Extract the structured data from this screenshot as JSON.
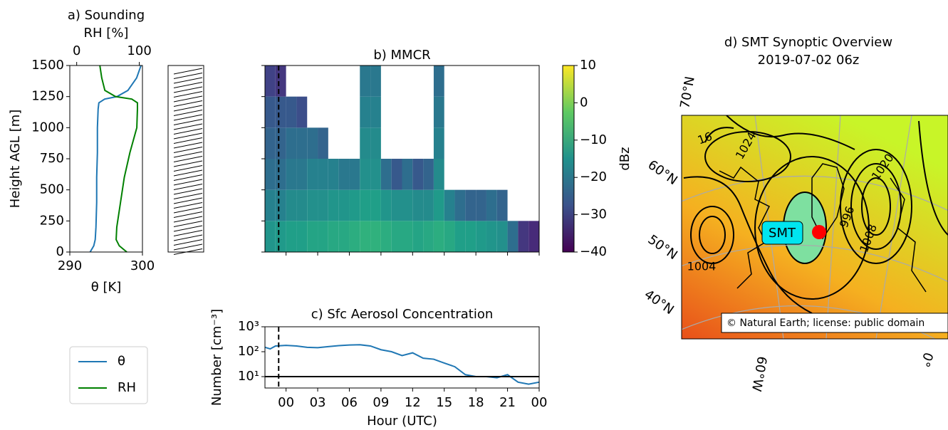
{
  "chart_data": [
    {
      "type": "profile",
      "title": "a) Sounding",
      "xlabel": "θ [K]",
      "x2label": "RH [%]",
      "ylabel": "Height AGL [m]",
      "y": [
        0,
        50,
        100,
        200,
        400,
        600,
        800,
        1000,
        1150,
        1200,
        1230,
        1250,
        1300,
        1400,
        1500
      ],
      "series": [
        {
          "name": "θ",
          "color": "#1f77b4",
          "axis": "x",
          "values": [
            292.8,
            293.3,
            293.5,
            293.6,
            293.7,
            293.7,
            293.8,
            293.8,
            293.9,
            294.0,
            294.8,
            296.5,
            298.0,
            299.2,
            299.8
          ]
        },
        {
          "name": "RH",
          "color": "#008000",
          "axis": "x2",
          "values": [
            80,
            68,
            63,
            64,
            70,
            76,
            85,
            96,
            97,
            97,
            88,
            62,
            45,
            40,
            37
          ]
        }
      ],
      "xlim": [
        290,
        300
      ],
      "xticks": [
        290,
        300
      ],
      "x2lim": [
        -11,
        105
      ],
      "x2ticks": [
        0,
        100
      ],
      "ylim": [
        0,
        1500
      ],
      "yticks": [
        0,
        250,
        500,
        750,
        1000,
        1250,
        1500
      ]
    },
    {
      "type": "heatmap",
      "title": "b) MMCR",
      "xlim": [
        -2,
        24
      ],
      "xticks": [
        0,
        3,
        6,
        9,
        12,
        15,
        18,
        21,
        24
      ],
      "ylim": [
        0,
        1500
      ],
      "yticks": [
        0,
        250,
        500,
        750,
        1000,
        1250,
        1500
      ],
      "vline": -0.7,
      "x_edges": [
        -2,
        -1,
        0,
        1,
        2,
        3,
        4,
        5,
        6,
        7,
        8,
        9,
        10,
        11,
        12,
        13,
        14,
        15,
        16,
        17,
        18,
        19,
        20,
        21,
        22,
        23,
        24
      ],
      "y_edges": [
        0,
        250,
        500,
        750,
        1000,
        1250,
        1500
      ],
      "z": [
        [
          -14,
          -13,
          -12,
          -12,
          -11,
          -11,
          -10,
          -10,
          -9,
          -8,
          -8,
          -9,
          -10,
          -10,
          -11,
          -10,
          -9,
          -10,
          -12,
          -12,
          -13,
          -14,
          -15,
          -22,
          -32,
          -34
        ],
        [
          -18,
          -18,
          -16,
          -16,
          -15,
          -15,
          -14,
          -14,
          -13,
          -12,
          -12,
          -14,
          -15,
          -15,
          -16,
          -16,
          -13,
          -18,
          -22,
          -24,
          -24,
          -22,
          -24,
          null,
          null,
          null
        ],
        [
          -22,
          -22,
          -20,
          -20,
          -18,
          -18,
          -18,
          -20,
          -20,
          -15,
          -15,
          -22,
          -26,
          -22,
          -26,
          -24,
          -16,
          null,
          null,
          null,
          null,
          null,
          null,
          null,
          null,
          null
        ],
        [
          -24,
          -24,
          -22,
          -22,
          -22,
          -24,
          null,
          null,
          null,
          -16,
          -16,
          null,
          null,
          null,
          null,
          null,
          -18,
          null,
          null,
          null,
          null,
          null,
          null,
          null,
          null,
          null
        ],
        [
          -26,
          -26,
          -26,
          -28,
          null,
          null,
          null,
          null,
          null,
          -18,
          -18,
          null,
          null,
          null,
          null,
          null,
          -20,
          null,
          null,
          null,
          null,
          null,
          null,
          null,
          null,
          null
        ],
        [
          -30,
          -32,
          null,
          null,
          null,
          null,
          null,
          null,
          null,
          -20,
          -20,
          null,
          null,
          null,
          null,
          null,
          -22,
          null,
          null,
          null,
          null,
          null,
          null,
          null,
          null,
          null
        ]
      ],
      "colorbar": {
        "label": "dBz",
        "lim": [
          -40,
          10
        ],
        "ticks": [
          10,
          0,
          {
            "value": -10,
            "label": "−10"
          },
          {
            "value": -20,
            "label": "−20"
          },
          {
            "value": -30,
            "label": "−30"
          },
          {
            "value": -40,
            "label": "−40"
          }
        ]
      }
    },
    {
      "type": "line",
      "title": "c) Sfc Aerosol Concentration",
      "xlabel": "Hour (UTC)",
      "ylabel": "Number [cm⁻³]",
      "log_y": true,
      "x": [
        -2,
        -1.5,
        -1,
        0,
        1,
        2,
        3,
        4,
        5,
        6,
        7,
        8,
        9,
        10,
        11,
        12,
        13,
        14,
        15,
        16,
        17,
        18,
        19,
        20,
        21,
        22,
        23,
        24
      ],
      "series": [
        {
          "color": "#1f77b4",
          "values": [
            150,
            130,
            170,
            180,
            170,
            150,
            145,
            160,
            175,
            185,
            190,
            170,
            120,
            100,
            70,
            90,
            55,
            50,
            35,
            25,
            12,
            10,
            10,
            9,
            12,
            6,
            5,
            6
          ]
        }
      ],
      "xlim": [
        -2,
        24
      ],
      "xticks": [
        {
          "value": 0,
          "label": "00"
        },
        {
          "value": 3,
          "label": "03"
        },
        {
          "value": 6,
          "label": "06"
        },
        {
          "value": 9,
          "label": "09"
        },
        12,
        15,
        18,
        21,
        {
          "value": 24,
          "label": "00"
        }
      ],
      "ylim": [
        3.5,
        1000
      ],
      "yticks": [
        {
          "value": 10,
          "label": "10¹"
        },
        {
          "value": 100,
          "label": "10²"
        },
        {
          "value": 1000,
          "label": "10³"
        }
      ],
      "hline": 10,
      "vline": -0.7
    }
  ],
  "map": {
    "title": [
      "d) SMT Synoptic Overview",
      "2019-07-02 06z"
    ],
    "lat_labels": [
      "70°N",
      "60°N",
      "50°N",
      "40°N"
    ],
    "lon_labels": [
      "60°W",
      "0°"
    ],
    "station": "SMT",
    "attribution": "© Natural Earth; license: public domain",
    "contour_labels": [
      "1024",
      "1020",
      "1004",
      "996",
      "1008",
      "16"
    ]
  }
}
